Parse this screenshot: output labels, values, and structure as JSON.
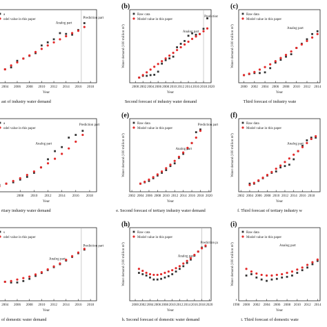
{
  "chart_data": [
    {
      "type": "scatter",
      "panel": "",
      "caption": "ast of industry water demand",
      "xlabel": "Year",
      "ylabel": "",
      "xlim": [
        2002.5,
        2019
      ],
      "ylim": [
        0.45,
        2.35
      ],
      "xticks": [
        "2004",
        "2006",
        "2008",
        "2010",
        "2012",
        "2014",
        "2016",
        "2018"
      ],
      "divider": 2016.5,
      "annotations": [
        {
          "text": "Analog part",
          "x": 2012.3,
          "y": 1.98
        },
        {
          "text": "Prediction part",
          "x": 2016.8,
          "y": 2.12
        }
      ],
      "legend": [
        "a",
        "odel value in this paper"
      ],
      "series": [
        {
          "name": "Raw data",
          "x": [
            2003,
            2004,
            2005,
            2006,
            2007,
            2008,
            2009,
            2010,
            2011,
            2012,
            2013,
            2014,
            2015,
            2016,
            2017
          ],
          "y": [
            0.78,
            0.8,
            0.85,
            1.02,
            1.08,
            1.15,
            1.22,
            1.42,
            1.5,
            1.58,
            1.74,
            1.72,
            1.7,
            1.82,
            2.0
          ]
        },
        {
          "name": "Model value in this paper",
          "x": [
            2003,
            2004,
            2005,
            2006,
            2007,
            2008,
            2009,
            2010,
            2011,
            2012,
            2013,
            2014,
            2015,
            2016,
            2017
          ],
          "y": [
            0.72,
            0.8,
            0.9,
            0.98,
            1.08,
            1.16,
            1.25,
            1.33,
            1.42,
            1.5,
            1.58,
            1.66,
            1.74,
            1.8,
            1.9
          ]
        }
      ]
    },
    {
      "type": "scatter",
      "panel": "(b)",
      "caption": "Second forecast of industry water demand",
      "xlabel": "Year",
      "ylabel": "Water demand (100 million m³)",
      "xlim": [
        1998.5,
        2020
      ],
      "ylim": [
        0.4,
        2.5
      ],
      "xticks": [
        "2000",
        "2002",
        "2004",
        "2006",
        "2008",
        "2010",
        "2012",
        "2014",
        "2016",
        "2018",
        "2020"
      ],
      "divider": 2018,
      "annotations": [
        {
          "text": "Analog part",
          "x": 2012.5,
          "y": 1.85
        },
        {
          "text": "Prediction part",
          "x": 2018.2,
          "y": 2.28
        }
      ],
      "legend": [
        "Raw cata",
        "Model value in this paper"
      ],
      "series": [
        {
          "name": "Raw cata",
          "x": [
            2001,
            2002,
            2003,
            2004,
            2005,
            2006,
            2007,
            2008,
            2009,
            2010,
            2011,
            2012,
            2013,
            2014,
            2015,
            2016,
            2017,
            2018,
            2019
          ],
          "y": [
            0.55,
            0.6,
            0.6,
            0.62,
            0.63,
            0.72,
            0.95,
            1.05,
            1.1,
            1.15,
            1.42,
            1.52,
            1.6,
            1.75,
            1.82,
            1.78,
            1.8,
            1.95,
            2.25
          ]
        },
        {
          "name": "Model value in this paper",
          "x": [
            2001,
            2002,
            2003,
            2004,
            2005,
            2006,
            2007,
            2008,
            2009,
            2010,
            2011,
            2012,
            2013,
            2014,
            2015,
            2016,
            2017,
            2018,
            2019
          ],
          "y": [
            0.55,
            0.62,
            0.7,
            0.78,
            0.86,
            0.94,
            1.02,
            1.1,
            1.18,
            1.26,
            1.34,
            1.42,
            1.5,
            1.58,
            1.66,
            1.73,
            1.8,
            1.88,
            1.96
          ]
        }
      ]
    },
    {
      "type": "scatter",
      "panel": "(c)",
      "caption": "Third forecast of  industry wate",
      "xlabel": "Year",
      "ylabel": "Water demand (100 million m³)",
      "xlim": [
        1999,
        2014.5
      ],
      "ylim": [
        0.3,
        2.4
      ],
      "xticks": [
        "2000",
        "2002",
        "2004",
        "2006",
        "2008",
        "2010",
        "2012",
        "2014"
      ],
      "divider": null,
      "annotations": [
        {
          "text": "Analog part",
          "x": 2008.2,
          "y": 1.85
        }
      ],
      "legend": [
        "Raw data",
        "Model value in this paper"
      ],
      "series": [
        {
          "name": "Raw data",
          "x": [
            2000,
            2001,
            2002,
            2003,
            2004,
            2005,
            2006,
            2007,
            2008,
            2009,
            2010,
            2011,
            2012,
            2013,
            2014
          ],
          "y": [
            0.52,
            0.55,
            0.58,
            0.58,
            0.6,
            0.72,
            0.88,
            0.96,
            1.05,
            1.12,
            1.3,
            1.42,
            1.55,
            1.7,
            1.78
          ]
        },
        {
          "name": "Model value in this paper",
          "x": [
            2000,
            2001,
            2002,
            2003,
            2004,
            2005,
            2006,
            2007,
            2008,
            2009,
            2010,
            2011,
            2012,
            2013,
            2014
          ],
          "y": [
            0.52,
            0.56,
            0.61,
            0.68,
            0.75,
            0.83,
            0.92,
            1.01,
            1.1,
            1.2,
            1.3,
            1.4,
            1.5,
            1.6,
            1.7
          ]
        }
      ]
    },
    {
      "type": "scatter",
      "panel": "",
      "caption": "rtiary industry water demand",
      "xlabel": "Year",
      "ylabel": "",
      "xlim": [
        2004.5,
        2019
      ],
      "ylim": [
        0,
        0.27
      ],
      "xticks": [
        "2008",
        "2010",
        "2012",
        "2014",
        "2016",
        "2018"
      ],
      "divider": null,
      "annotations": [
        {
          "text": "Analog part",
          "x": 2010.2,
          "y": 0.175
        },
        {
          "text": "Prediction part",
          "x": 2016.5,
          "y": 0.245
        }
      ],
      "legend": [
        "a",
        "odel value in this paper"
      ],
      "series": [
        {
          "name": "Raw data",
          "x": [
            2005,
            2006,
            2007,
            2008,
            2009,
            2010,
            2011,
            2012,
            2013,
            2014,
            2015,
            2016,
            2017
          ],
          "y": [
            0.025,
            0.03,
            0.035,
            0.045,
            0.055,
            0.07,
            0.09,
            0.12,
            0.15,
            0.165,
            0.2,
            0.21,
            0.225
          ]
        },
        {
          "name": "Model value in this paper",
          "x": [
            2005,
            2006,
            2007,
            2008,
            2009,
            2010,
            2011,
            2012,
            2013,
            2014,
            2015,
            2016,
            2017
          ],
          "y": [
            0.02,
            0.03,
            0.04,
            0.05,
            0.062,
            0.075,
            0.09,
            0.105,
            0.122,
            0.14,
            0.16,
            0.185,
            0.21
          ]
        }
      ]
    },
    {
      "type": "scatter",
      "panel": "(e)",
      "caption": "e. Second forecast of tertiary industry water demand",
      "xlabel": "Year",
      "ylabel": "Water demand (100 million m³)",
      "xlim": [
        2001.5,
        2020.5
      ],
      "ylim": [
        0,
        0.27
      ],
      "xticks": [
        "2002",
        "2004",
        "2006",
        "2008",
        "2010",
        "2012",
        "2014",
        "2016",
        "2018",
        "2020"
      ],
      "divider": null,
      "annotations": [
        {
          "text": "Analog part",
          "x": 2012.2,
          "y": 0.155
        },
        {
          "text": "Prediction part",
          "x": 2017.4,
          "y": 0.245
        }
      ],
      "legend": [
        "Raw data",
        "Model value in this paper"
      ],
      "series": [
        {
          "name": "Raw data",
          "x": [
            2004,
            2005,
            2006,
            2007,
            2008,
            2009,
            2010,
            2011,
            2012,
            2013,
            2014,
            2015,
            2016,
            2017,
            2018
          ],
          "y": [
            0.03,
            0.035,
            0.04,
            0.05,
            0.06,
            0.07,
            0.08,
            0.095,
            0.105,
            0.125,
            0.14,
            0.16,
            0.18,
            0.22,
            0.23
          ]
        },
        {
          "name": "Model value in this paper",
          "x": [
            2004,
            2005,
            2006,
            2007,
            2008,
            2009,
            2010,
            2011,
            2012,
            2013,
            2014,
            2015,
            2016,
            2017,
            2018
          ],
          "y": [
            0.03,
            0.037,
            0.045,
            0.054,
            0.064,
            0.075,
            0.087,
            0.1,
            0.114,
            0.129,
            0.145,
            0.162,
            0.18,
            0.2,
            0.225
          ]
        }
      ]
    },
    {
      "type": "scatter",
      "panel": "(f)",
      "caption": "f. Third forecast of tertiary industry w",
      "xlabel": "Year",
      "ylabel": "Water demand (100 million m³)",
      "xlim": [
        2001.5,
        2020
      ],
      "ylim": [
        0,
        0.27
      ],
      "xticks": [
        "2002",
        "2004",
        "2006",
        "2008",
        "2010",
        "2012",
        "2014",
        "2016",
        "2018"
      ],
      "divider": null,
      "annotations": [
        {
          "text": "Analog part",
          "x": 2012.5,
          "y": 0.175
        }
      ],
      "legend": [
        "Raw data",
        "Model value in this paper"
      ],
      "series": [
        {
          "name": "Raw data",
          "x": [
            2004,
            2005,
            2006,
            2007,
            2008,
            2009,
            2010,
            2011,
            2012,
            2013,
            2014,
            2015,
            2016,
            2017,
            2018,
            2019
          ],
          "y": [
            0.03,
            0.03,
            0.04,
            0.05,
            0.06,
            0.07,
            0.075,
            0.09,
            0.095,
            0.1,
            0.12,
            0.15,
            0.17,
            0.19,
            0.2,
            0.2
          ]
        },
        {
          "name": "Model value in this paper",
          "x": [
            2004,
            2005,
            2006,
            2007,
            2008,
            2009,
            2010,
            2011,
            2012,
            2013,
            2014,
            2015,
            2016,
            2017,
            2018,
            2019
          ],
          "y": [
            0.025,
            0.033,
            0.042,
            0.052,
            0.062,
            0.073,
            0.085,
            0.097,
            0.11,
            0.123,
            0.137,
            0.15,
            0.165,
            0.18,
            0.195,
            0.205
          ]
        }
      ]
    },
    {
      "type": "scatter",
      "panel": "",
      "caption": "of domestic water demand",
      "xlabel": "Year",
      "ylabel": "",
      "xlim": [
        2002.5,
        2019
      ],
      "ylim": [
        0.3,
        1.3
      ],
      "xticks": [
        "2004",
        "2006",
        "2008",
        "2010",
        "2012",
        "2014",
        "2016",
        "2018"
      ],
      "divider": 2016.5,
      "annotations": [
        {
          "text": "Analog part",
          "x": 2011.2,
          "y": 0.86
        },
        {
          "text": "Prediction part",
          "x": 2016.8,
          "y": 1.04
        }
      ],
      "legend": [
        "s",
        "odel value in this paper"
      ],
      "series": [
        {
          "name": "Raw data",
          "x": [
            2003,
            2004,
            2005,
            2006,
            2007,
            2008,
            2009,
            2010,
            2011,
            2012,
            2013,
            2014,
            2015,
            2016,
            2017
          ],
          "y": [
            0.6,
            0.56,
            0.55,
            0.55,
            0.57,
            0.6,
            0.64,
            0.68,
            0.72,
            0.76,
            0.8,
            0.85,
            0.9,
            0.95,
            1.0
          ]
        },
        {
          "name": "Model value in this paper",
          "x": [
            2003,
            2004,
            2005,
            2006,
            2007,
            2008,
            2009,
            2010,
            2011,
            2012,
            2013,
            2014,
            2015,
            2016,
            2017
          ],
          "y": [
            0.55,
            0.56,
            0.57,
            0.59,
            0.61,
            0.63,
            0.66,
            0.69,
            0.73,
            0.77,
            0.81,
            0.86,
            0.91,
            0.96,
            1.01
          ]
        }
      ]
    },
    {
      "type": "scatter",
      "panel": "(h)",
      "caption": "h. Second forecast of domestic water demand",
      "xlabel": "Year",
      "ylabel": "Water demand (100 million m³)",
      "xlim": [
        1998.5,
        2020.5
      ],
      "ylim": [
        0.2,
        1.3
      ],
      "xticks": [
        "2000",
        "2002",
        "2004",
        "2006",
        "2008",
        "2010",
        "2012",
        "2014",
        "2016",
        "2018",
        "2020"
      ],
      "divider": 2018,
      "annotations": [
        {
          "text": "Analog part",
          "x": 2011.5,
          "y": 0.86
        },
        {
          "text": "Prediction part",
          "x": 2017.6,
          "y": 1.06
        }
      ],
      "legend": [
        "Raw cata",
        "Model value in this paper"
      ],
      "series": [
        {
          "name": "Raw cata",
          "x": [
            2001,
            2002,
            2003,
            2004,
            2005,
            2006,
            2007,
            2008,
            2009,
            2010,
            2011,
            2012,
            2013,
            2014,
            2015,
            2016,
            2017,
            2018,
            2019
          ],
          "y": [
            0.62,
            0.6,
            0.58,
            0.55,
            0.52,
            0.52,
            0.53,
            0.55,
            0.57,
            0.6,
            0.64,
            0.68,
            0.72,
            0.77,
            0.82,
            0.88,
            0.94,
            1.0,
            1.02
          ]
        },
        {
          "name": "Model value in this paper",
          "x": [
            2001,
            2002,
            2003,
            2004,
            2005,
            2006,
            2007,
            2008,
            2009,
            2010,
            2011,
            2012,
            2013,
            2014,
            2015,
            2016,
            2017,
            2018,
            2019
          ],
          "y": [
            0.68,
            0.65,
            0.62,
            0.6,
            0.59,
            0.59,
            0.6,
            0.62,
            0.64,
            0.66,
            0.69,
            0.72,
            0.76,
            0.8,
            0.84,
            0.89,
            0.94,
            0.99,
            1.03
          ]
        }
      ]
    },
    {
      "type": "scatter",
      "panel": "(i)",
      "caption": "i. Third forecast of domestic wate",
      "xlabel": "Year",
      "ylabel": "Water demand (100 million m³)",
      "xlim": [
        1998.5,
        2014.5
      ],
      "ylim": [
        0.2,
        1.3
      ],
      "xticks": [
        "1998",
        "2000",
        "2002",
        "2004",
        "2006",
        "2008",
        "2010",
        "2012",
        "2014"
      ],
      "divider": null,
      "annotations": [
        {
          "text": "Analog part",
          "x": 2006.5,
          "y": 1.02
        }
      ],
      "legend": [
        "Raw data",
        "Model value in this paper"
      ],
      "series": [
        {
          "name": "Raw data",
          "x": [
            2000,
            2001,
            2002,
            2003,
            2004,
            2005,
            2006,
            2007,
            2008,
            2009,
            2010,
            2011,
            2012,
            2013,
            2014
          ],
          "y": [
            0.58,
            0.6,
            0.55,
            0.52,
            0.5,
            0.52,
            0.53,
            0.55,
            0.56,
            0.58,
            0.62,
            0.66,
            0.7,
            0.75,
            0.8
          ]
        },
        {
          "name": "Model value in this paper",
          "x": [
            2000,
            2001,
            2002,
            2003,
            2004,
            2005,
            2006,
            2007,
            2008,
            2009,
            2010,
            2011,
            2012,
            2013,
            2014
          ],
          "y": [
            0.68,
            0.64,
            0.61,
            0.59,
            0.58,
            0.58,
            0.59,
            0.6,
            0.62,
            0.64,
            0.67,
            0.7,
            0.74,
            0.78,
            0.82
          ]
        }
      ]
    }
  ],
  "colors": {
    "raw": "#333333",
    "model": "#e32b2b",
    "axis": "#222222",
    "divider": "#aaaaaa"
  }
}
